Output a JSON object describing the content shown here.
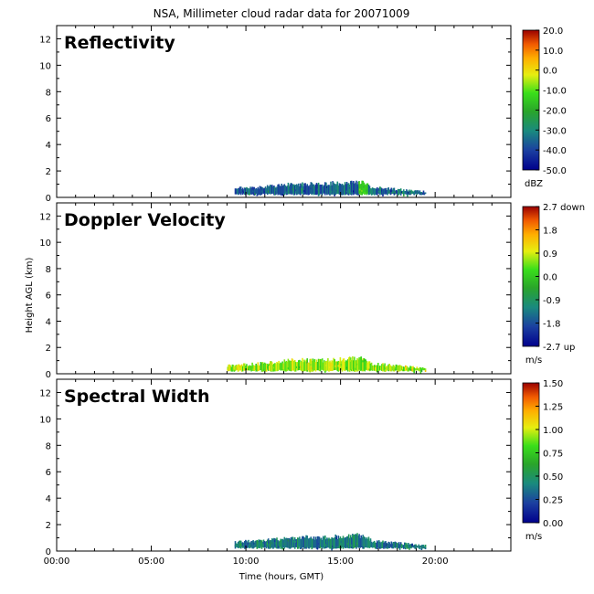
{
  "title": "NSA, Millimeter cloud radar data for 20071009",
  "xlabel": "Time (hours, GMT)",
  "ylabel": "Height AGL (km)",
  "colors": {
    "frame": "#000000",
    "background": "#ffffff"
  },
  "chart_data": [
    {
      "type": "heatmap",
      "panel_title": "Reflectivity",
      "xlim": [
        0,
        24
      ],
      "ylim": [
        0,
        13
      ],
      "x_ticks": [
        "00:00",
        "05:00",
        "10:00",
        "15:00",
        "20:00"
      ],
      "x_tick_values": [
        0,
        5,
        10,
        15,
        20
      ],
      "y_ticks": [
        "0",
        "2",
        "4",
        "6",
        "8",
        "10",
        "12"
      ],
      "y_tick_values": [
        0,
        2,
        4,
        6,
        8,
        10,
        12
      ],
      "colorbar": {
        "range": [
          -50,
          20
        ],
        "ticks": [
          "20.0",
          "10.0",
          "0.0",
          "-10.0",
          "-20.0",
          "-30.0",
          "-40.0",
          "-50.0"
        ],
        "units": "dBZ"
      },
      "cloud": {
        "start_hour": 9.4,
        "end_hour": 19.5,
        "top_km": [
          [
            9.4,
            0.8
          ],
          [
            11.5,
            1.0
          ],
          [
            12.5,
            1.2
          ],
          [
            14.0,
            1.2
          ],
          [
            16.2,
            1.4
          ],
          [
            16.6,
            0.9
          ],
          [
            18.0,
            0.7
          ],
          [
            19.5,
            0.5
          ]
        ],
        "dominant_value": -35,
        "highlight": {
          "hour": 16.2,
          "value": -15
        }
      }
    },
    {
      "type": "heatmap",
      "panel_title": "Doppler Velocity",
      "xlim": [
        0,
        24
      ],
      "ylim": [
        0,
        13
      ],
      "x_ticks": [
        "00:00",
        "05:00",
        "10:00",
        "15:00",
        "20:00"
      ],
      "x_tick_values": [
        0,
        5,
        10,
        15,
        20
      ],
      "y_ticks": [
        "0",
        "2",
        "4",
        "6",
        "8",
        "10",
        "12"
      ],
      "y_tick_values": [
        0,
        2,
        4,
        6,
        8,
        10,
        12
      ],
      "colorbar": {
        "range": [
          -2.7,
          2.7
        ],
        "ticks": [
          "2.7 down",
          "1.8",
          "0.9",
          "0.0",
          "-0.9",
          "-1.8",
          "-2.7 up"
        ],
        "units": "m/s"
      },
      "cloud": {
        "start_hour": 9.0,
        "end_hour": 19.5,
        "top_km": [
          [
            9.0,
            0.7
          ],
          [
            11.5,
            1.0
          ],
          [
            12.5,
            1.2
          ],
          [
            14.0,
            1.2
          ],
          [
            16.2,
            1.4
          ],
          [
            16.6,
            0.9
          ],
          [
            18.0,
            0.7
          ],
          [
            19.5,
            0.5
          ]
        ],
        "dominant_value": 0.6
      }
    },
    {
      "type": "heatmap",
      "panel_title": "Spectral Width",
      "xlim": [
        0,
        24
      ],
      "ylim": [
        0,
        13
      ],
      "x_ticks": [
        "00:00",
        "05:00",
        "10:00",
        "15:00",
        "20:00"
      ],
      "x_tick_values": [
        0,
        5,
        10,
        15,
        20
      ],
      "y_ticks": [
        "0",
        "2",
        "4",
        "6",
        "8",
        "10",
        "12"
      ],
      "y_tick_values": [
        0,
        2,
        4,
        6,
        8,
        10,
        12
      ],
      "colorbar": {
        "range": [
          0,
          1.5
        ],
        "ticks": [
          "1.50",
          "1.25",
          "1.00",
          "0.75",
          "0.50",
          "0.25",
          "0.00"
        ],
        "units": "m/s"
      },
      "cloud": {
        "start_hour": 9.4,
        "end_hour": 19.5,
        "top_km": [
          [
            9.4,
            0.8
          ],
          [
            11.5,
            1.0
          ],
          [
            12.5,
            1.2
          ],
          [
            14.0,
            1.2
          ],
          [
            16.2,
            1.4
          ],
          [
            16.6,
            0.9
          ],
          [
            18.0,
            0.7
          ],
          [
            19.5,
            0.5
          ]
        ],
        "dominant_value": 0.4
      }
    }
  ]
}
